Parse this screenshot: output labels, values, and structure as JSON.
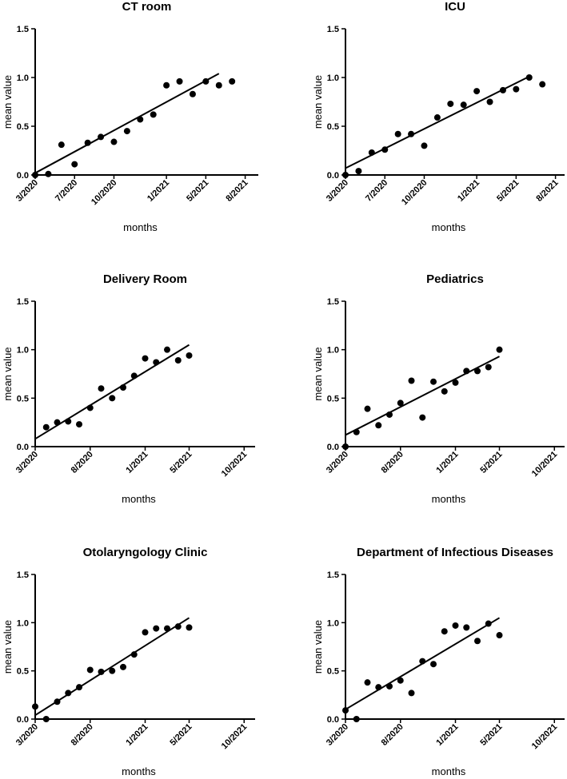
{
  "chart_data": [
    {
      "type": "scatter",
      "title": "CT room",
      "xlabel": "months",
      "ylabel": "mean value",
      "ylim": [
        0,
        1.5
      ],
      "xlim": [
        0,
        17
      ],
      "xticks": [
        {
          "pos": 0,
          "label": "3/2020"
        },
        {
          "pos": 3,
          "label": "7/2020"
        },
        {
          "pos": 6,
          "label": "10/2020"
        },
        {
          "pos": 10,
          "label": "1/2021"
        },
        {
          "pos": 13,
          "label": "5/2021"
        },
        {
          "pos": 16,
          "label": "8/2021"
        }
      ],
      "yticks": [
        {
          "pos": 0,
          "label": "0.0"
        },
        {
          "pos": 0.5,
          "label": "0.5"
        },
        {
          "pos": 1,
          "label": "1.0"
        },
        {
          "pos": 1.5,
          "label": "1.5"
        }
      ],
      "x": [
        0,
        1,
        2,
        3,
        4,
        5,
        6,
        7,
        8,
        9,
        10,
        11,
        12,
        13,
        14,
        15
      ],
      "y": [
        0.0,
        0.01,
        0.31,
        0.11,
        0.33,
        0.39,
        0.34,
        0.45,
        0.57,
        0.62,
        0.92,
        0.96,
        0.83,
        0.96,
        0.92,
        0.96
      ],
      "fit": {
        "x0": 0,
        "y0": 0.02,
        "x1": 14,
        "y1": 1.04
      }
    },
    {
      "type": "scatter",
      "title": "ICU",
      "xlabel": "months",
      "ylabel": "mean value",
      "ylim": [
        0,
        1.5
      ],
      "xlim": [
        0,
        17
      ],
      "xticks": [
        {
          "pos": 0,
          "label": "3/2020"
        },
        {
          "pos": 3,
          "label": "7/2020"
        },
        {
          "pos": 6,
          "label": "10/2020"
        },
        {
          "pos": 10,
          "label": "1/2021"
        },
        {
          "pos": 13,
          "label": "5/2021"
        },
        {
          "pos": 16,
          "label": "8/2021"
        }
      ],
      "yticks": [
        {
          "pos": 0,
          "label": "0.0"
        },
        {
          "pos": 0.5,
          "label": "0.5"
        },
        {
          "pos": 1,
          "label": "1.0"
        },
        {
          "pos": 1.5,
          "label": "1.5"
        }
      ],
      "x": [
        0,
        1,
        2,
        3,
        4,
        5,
        6,
        7,
        8,
        9,
        10,
        11,
        12,
        13,
        14,
        15
      ],
      "y": [
        0.0,
        0.04,
        0.23,
        0.26,
        0.42,
        0.42,
        0.3,
        0.59,
        0.73,
        0.72,
        0.86,
        0.75,
        0.87,
        0.88,
        1.0,
        0.93
      ],
      "fit": {
        "x0": 0,
        "y0": 0.07,
        "x1": 14,
        "y1": 1.01
      }
    },
    {
      "type": "scatter",
      "title": "Delivery Room",
      "xlabel": "months",
      "ylabel": "mean value",
      "ylim": [
        0,
        1.5
      ],
      "xlim": [
        0,
        20
      ],
      "xticks": [
        {
          "pos": 0,
          "label": "3/2020"
        },
        {
          "pos": 5,
          "label": "8/2020"
        },
        {
          "pos": 10,
          "label": "1/2021"
        },
        {
          "pos": 14,
          "label": "5/2021"
        },
        {
          "pos": 19,
          "label": "10/2021"
        }
      ],
      "yticks": [
        {
          "pos": 0,
          "label": "0.0"
        },
        {
          "pos": 0.5,
          "label": "0.5"
        },
        {
          "pos": 1,
          "label": "1.0"
        },
        {
          "pos": 1.5,
          "label": "1.5"
        }
      ],
      "x": [
        1,
        2,
        3,
        4,
        5,
        6,
        7,
        8,
        9,
        10,
        11,
        12,
        13,
        14
      ],
      "y": [
        0.2,
        0.25,
        0.26,
        0.23,
        0.4,
        0.6,
        0.5,
        0.61,
        0.73,
        0.91,
        0.87,
        1.0,
        0.89,
        0.94
      ],
      "fit": {
        "x0": 0,
        "y0": 0.08,
        "x1": 14,
        "y1": 1.05
      }
    },
    {
      "type": "scatter",
      "title": "Pediatrics",
      "xlabel": "months",
      "ylabel": "mean value",
      "ylim": [
        0,
        1.5
      ],
      "xlim": [
        0,
        20
      ],
      "xticks": [
        {
          "pos": 0,
          "label": "3/2020"
        },
        {
          "pos": 5,
          "label": "8/2020"
        },
        {
          "pos": 10,
          "label": "1/2021"
        },
        {
          "pos": 14,
          "label": "5/2021"
        },
        {
          "pos": 19,
          "label": "10/2021"
        }
      ],
      "yticks": [
        {
          "pos": 0,
          "label": "0.0"
        },
        {
          "pos": 0.5,
          "label": "0.5"
        },
        {
          "pos": 1,
          "label": "1.0"
        },
        {
          "pos": 1.5,
          "label": "1.5"
        }
      ],
      "x": [
        0,
        1,
        2,
        3,
        4,
        5,
        6,
        7,
        8,
        9,
        10,
        11,
        12,
        13,
        14
      ],
      "y": [
        0.0,
        0.15,
        0.39,
        0.22,
        0.33,
        0.45,
        0.68,
        0.3,
        0.67,
        0.57,
        0.66,
        0.78,
        0.78,
        0.82,
        1.0
      ],
      "fit": {
        "x0": 0,
        "y0": 0.12,
        "x1": 14,
        "y1": 0.93
      }
    },
    {
      "type": "scatter",
      "title": "Otolaryngology Clinic",
      "xlabel": "months",
      "ylabel": "mean value",
      "ylim": [
        0,
        1.5
      ],
      "xlim": [
        0,
        20
      ],
      "xticks": [
        {
          "pos": 0,
          "label": "3/2020"
        },
        {
          "pos": 5,
          "label": "8/2020"
        },
        {
          "pos": 10,
          "label": "1/2021"
        },
        {
          "pos": 14,
          "label": "5/2021"
        },
        {
          "pos": 19,
          "label": "10/2021"
        }
      ],
      "yticks": [
        {
          "pos": 0,
          "label": "0.0"
        },
        {
          "pos": 0.5,
          "label": "0.5"
        },
        {
          "pos": 1,
          "label": "1.0"
        },
        {
          "pos": 1.5,
          "label": "1.5"
        }
      ],
      "x": [
        0,
        1,
        2,
        3,
        4,
        5,
        6,
        7,
        8,
        9,
        10,
        11,
        12,
        13,
        14
      ],
      "y": [
        0.13,
        0.0,
        0.18,
        0.27,
        0.33,
        0.51,
        0.49,
        0.5,
        0.54,
        0.67,
        0.9,
        0.94,
        0.94,
        0.96,
        0.95
      ],
      "fit": {
        "x0": 0,
        "y0": 0.04,
        "x1": 14,
        "y1": 1.05
      }
    },
    {
      "type": "scatter",
      "title": "Department of Infectious Diseases",
      "xlabel": "months",
      "ylabel": "mean value",
      "ylim": [
        0,
        1.5
      ],
      "xlim": [
        0,
        20
      ],
      "xticks": [
        {
          "pos": 0,
          "label": "3/2020"
        },
        {
          "pos": 5,
          "label": "8/2020"
        },
        {
          "pos": 10,
          "label": "1/2021"
        },
        {
          "pos": 14,
          "label": "5/2021"
        },
        {
          "pos": 19,
          "label": "10/2021"
        }
      ],
      "yticks": [
        {
          "pos": 0,
          "label": "0.0"
        },
        {
          "pos": 0.5,
          "label": "0.5"
        },
        {
          "pos": 1,
          "label": "1.0"
        },
        {
          "pos": 1.5,
          "label": "1.5"
        }
      ],
      "x": [
        0,
        1,
        2,
        3,
        4,
        5,
        6,
        7,
        8,
        9,
        10,
        11,
        12,
        13,
        14
      ],
      "y": [
        0.09,
        0.0,
        0.38,
        0.33,
        0.34,
        0.4,
        0.27,
        0.6,
        0.57,
        0.91,
        0.97,
        0.95,
        0.81,
        0.99,
        0.87
      ],
      "fit": {
        "x0": 0,
        "y0": 0.1,
        "x1": 14,
        "y1": 1.05
      }
    }
  ]
}
